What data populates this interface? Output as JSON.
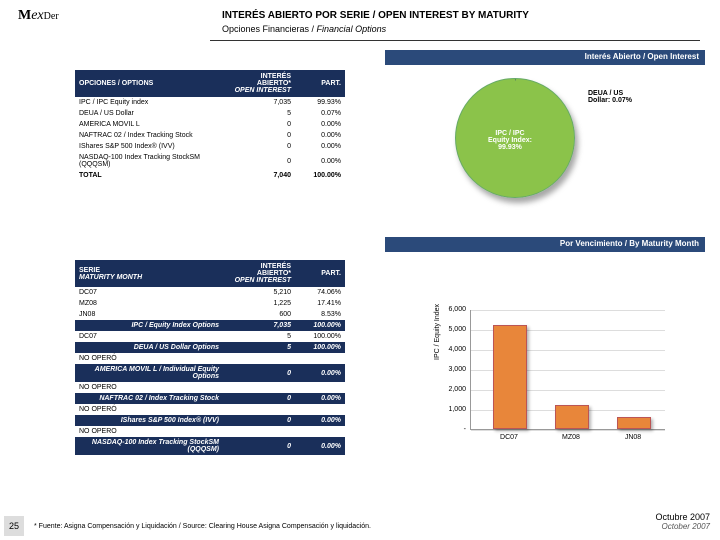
{
  "logo": {
    "m": "M",
    "e": "ex",
    "der": "Der"
  },
  "title": "INTERÉS ABIERTO POR SERIE / OPEN INTEREST BY MATURITY",
  "subtitle_es": "Opciones Financieras / ",
  "subtitle_en": "Financial Options",
  "banner1_es": "Interés Abierto /",
  "banner1_en": " Open Interest",
  "banner2_es": "Por Vencimiento /",
  "banner2_en": " By Maturity Month",
  "t1": {
    "h1": "OPCIONES / OPTIONS",
    "h2a": "INTERÉS ABIERTO*",
    "h2b": "OPEN INTEREST",
    "h3": "PART.",
    "rows": [
      {
        "n": "IPC / IPC Equity index",
        "v": "7,035",
        "p": "99.93%"
      },
      {
        "n": "DEUA / US Dollar",
        "v": "5",
        "p": "0.07%"
      },
      {
        "n": "AMERICA MOVIL L",
        "v": "0",
        "p": "0.00%"
      },
      {
        "n": "NAFTRAC 02 / Index Tracking Stock",
        "v": "0",
        "p": "0.00%"
      },
      {
        "n": "IShares S&P 500 Index® (IVV)",
        "v": "0",
        "p": "0.00%"
      },
      {
        "n": "NASDAQ-100 Index Tracking StockSM (QQQSM)",
        "v": "0",
        "p": "0.00%"
      }
    ],
    "total": {
      "n": "TOTAL",
      "v": "7,040",
      "p": "100.00%"
    }
  },
  "t2": {
    "h1a": "SERIE",
    "h1b": "MATURITY MONTH",
    "h2a": "INTERÉS ABIERTO*",
    "h2b": "OPEN INTEREST",
    "h3": "PART.",
    "groups": [
      {
        "rows": [
          {
            "n": "DC07",
            "v": "5,210",
            "p": "74.06%"
          },
          {
            "n": "MZ08",
            "v": "1,225",
            "p": "17.41%"
          },
          {
            "n": "JN08",
            "v": "600",
            "p": "8.53%"
          }
        ],
        "sub": {
          "n": "IPC / Equity Index Options",
          "v": "7,035",
          "p": "100.00%"
        }
      },
      {
        "rows": [
          {
            "n": "DC07",
            "v": "5",
            "p": "100.00%"
          }
        ],
        "sub": {
          "n": "DEUA / US Dollar Options",
          "v": "5",
          "p": "100.00%"
        }
      },
      {
        "rows": [
          {
            "n": "NO OPERÓ",
            "v": "",
            "p": ""
          }
        ],
        "sub": {
          "n": "AMERICA MOVIL L / Individual Equity Options",
          "v": "0",
          "p": "0.00%"
        }
      },
      {
        "rows": [
          {
            "n": "NO OPERO",
            "v": "",
            "p": ""
          }
        ],
        "sub": {
          "n": "NAFTRAC 02 / Index Tracking Stock",
          "v": "0",
          "p": "0.00%"
        }
      },
      {
        "rows": [
          {
            "n": "NO OPERÓ",
            "v": "",
            "p": ""
          }
        ],
        "sub": {
          "n": "IShares S&P 500 Index® (IVV)",
          "v": "0",
          "p": "0.00%"
        }
      },
      {
        "rows": [
          {
            "n": "NO OPERO",
            "v": "",
            "p": ""
          }
        ],
        "sub": {
          "n": "NASDAQ-100 Index Tracking StockSM (QQQSM)",
          "v": "0",
          "p": "0.00%"
        }
      }
    ]
  },
  "pie": {
    "slice1_color": "#8bc34a",
    "slice2_color": "#2b4a7a",
    "lbl1a": "DEUA / US",
    "lbl1b": "Dollar: 0.07%",
    "lbl2a": "IPC / IPC",
    "lbl2b": "Equity Index:",
    "lbl2c": "99.93%"
  },
  "bar": {
    "type": "bar",
    "ylabel": "IPC / Equity Index",
    "ylim": [
      0,
      6000
    ],
    "ytick_step": 1000,
    "yticks": [
      "-",
      "1,000",
      "2,000",
      "3,000",
      "4,000",
      "5,000",
      "6,000"
    ],
    "categories": [
      "DC07",
      "MZ08",
      "JN08"
    ],
    "values": [
      5210,
      1225,
      600
    ],
    "bar_color": "#e8863a",
    "grid_color": "#dddddd"
  },
  "pagenum": "25",
  "footnote": "* Fuente: Asigna Compensación y Liquidación / Source: Clearing House Asigna Compensación y liquidación.",
  "date_es": "Octubre 2007",
  "date_en": "October 2007"
}
